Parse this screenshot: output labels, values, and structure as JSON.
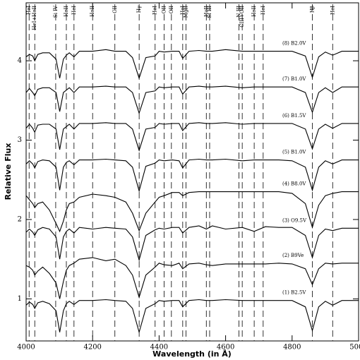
{
  "chart_data": {
    "type": "line",
    "x_label": "Wavelength (in Å)",
    "y_label": "Relative Flux",
    "xlim": [
      4000,
      5000
    ],
    "ylim": [
      0.47,
      4.73
    ],
    "xticks": [
      4000,
      4200,
      4400,
      4600,
      4800,
      5000
    ],
    "yticks": [
      1,
      2,
      3,
      4
    ],
    "lines": [
      {
        "label": "HeI",
        "x": 4009
      },
      {
        "label": "HeI+HeII",
        "x": 4026
      },
      {
        "label": "Si IV",
        "x": 4089
      },
      {
        "label": "HeII",
        "x": 4121
      },
      {
        "label": "HeI",
        "x": 4144
      },
      {
        "label": "HeII",
        "x": 4200
      },
      {
        "label": "CII",
        "x": 4267
      },
      {
        "label": "Hγ",
        "x": 4340
      },
      {
        "label": "HeI",
        "x": 4388
      },
      {
        "label": "OII",
        "x": 4415
      },
      {
        "label": "OII",
        "x": 4437
      },
      {
        "label": "HeI",
        "x": 4471
      },
      {
        "label": "MgII",
        "x": 4481
      },
      {
        "label": "HeII",
        "x": 4542
      },
      {
        "label": "Si III",
        "x": 4552
      },
      {
        "label": "N III",
        "x": 4640
      },
      {
        "label": "CIII+OII",
        "x": 4650
      },
      {
        "label": "HeII",
        "x": 4686
      },
      {
        "label": "HeI",
        "x": 4713
      },
      {
        "label": "Hβ",
        "x": 4861
      },
      {
        "label": "HeI",
        "x": 4922
      }
    ],
    "x": [
      4000,
      4010,
      4020,
      4026,
      4035,
      4050,
      4070,
      4090,
      4101,
      4112,
      4121,
      4130,
      4144,
      4160,
      4200,
      4240,
      4267,
      4300,
      4320,
      4340,
      4360,
      4388,
      4400,
      4415,
      4440,
      4460,
      4471,
      4490,
      4520,
      4542,
      4560,
      4600,
      4650,
      4686,
      4720,
      4760,
      4800,
      4840,
      4861,
      4880,
      4900,
      4922,
      4950,
      5000
    ],
    "series": [
      {
        "name": "(8) B2.0V",
        "color": "#000000",
        "values": [
          4.05,
          4.08,
          4.06,
          4.0,
          4.08,
          4.1,
          4.1,
          4.02,
          3.78,
          4.02,
          4.07,
          4.1,
          4.05,
          4.12,
          4.12,
          4.14,
          4.12,
          4.12,
          4.04,
          3.78,
          4.04,
          4.06,
          4.12,
          4.11,
          4.12,
          4.12,
          4.03,
          4.12,
          4.13,
          4.12,
          4.12,
          4.14,
          4.12,
          4.12,
          4.12,
          4.12,
          4.12,
          4.06,
          3.79,
          4.05,
          4.11,
          4.07,
          4.12,
          4.12
        ]
      },
      {
        "name": "(7) B1.0V",
        "color": "#000000",
        "values": [
          3.6,
          3.65,
          3.6,
          3.56,
          3.64,
          3.66,
          3.66,
          3.6,
          3.36,
          3.6,
          3.63,
          3.66,
          3.6,
          3.67,
          3.67,
          3.68,
          3.67,
          3.67,
          3.6,
          3.34,
          3.6,
          3.62,
          3.67,
          3.66,
          3.67,
          3.67,
          3.58,
          3.67,
          3.68,
          3.67,
          3.67,
          3.68,
          3.66,
          3.67,
          3.67,
          3.67,
          3.67,
          3.6,
          3.35,
          3.6,
          3.66,
          3.6,
          3.67,
          3.67
        ]
      },
      {
        "name": "(6) B1.5V",
        "color": "#000000",
        "values": [
          3.15,
          3.2,
          3.15,
          3.1,
          3.19,
          3.2,
          3.2,
          3.14,
          2.88,
          3.14,
          3.17,
          3.2,
          3.14,
          3.21,
          3.21,
          3.22,
          3.21,
          3.21,
          3.14,
          2.87,
          3.14,
          3.16,
          3.21,
          3.2,
          3.21,
          3.21,
          3.12,
          3.21,
          3.22,
          3.21,
          3.21,
          3.22,
          3.2,
          3.21,
          3.21,
          3.21,
          3.21,
          3.14,
          2.89,
          3.14,
          3.2,
          3.15,
          3.21,
          3.21
        ]
      },
      {
        "name": "(5) B1.0V",
        "color": "#000000",
        "values": [
          2.7,
          2.74,
          2.7,
          2.65,
          2.73,
          2.75,
          2.74,
          2.66,
          2.37,
          2.66,
          2.72,
          2.74,
          2.69,
          2.75,
          2.75,
          2.76,
          2.75,
          2.74,
          2.66,
          2.36,
          2.67,
          2.71,
          2.75,
          2.74,
          2.75,
          2.74,
          2.65,
          2.75,
          2.76,
          2.75,
          2.75,
          2.76,
          2.74,
          2.75,
          2.75,
          2.75,
          2.74,
          2.66,
          2.37,
          2.66,
          2.74,
          2.7,
          2.75,
          2.75
        ]
      },
      {
        "name": "(4) B8.0V",
        "color": "#000000",
        "values": [
          2.3,
          2.25,
          2.2,
          2.15,
          2.2,
          2.22,
          2.12,
          1.95,
          1.85,
          1.98,
          2.12,
          2.2,
          2.22,
          2.28,
          2.32,
          2.3,
          2.28,
          2.22,
          2.08,
          1.86,
          2.08,
          2.22,
          2.28,
          2.3,
          2.34,
          2.34,
          2.3,
          2.34,
          2.35,
          2.35,
          2.35,
          2.35,
          2.35,
          2.35,
          2.35,
          2.35,
          2.33,
          2.2,
          1.9,
          2.18,
          2.3,
          2.33,
          2.35,
          2.35
        ]
      },
      {
        "name": "(3) O9.5V",
        "color": "#000000",
        "values": [
          1.84,
          1.88,
          1.84,
          1.8,
          1.87,
          1.9,
          1.88,
          1.78,
          1.5,
          1.78,
          1.85,
          1.88,
          1.83,
          1.9,
          1.88,
          1.9,
          1.89,
          1.88,
          1.78,
          1.49,
          1.8,
          1.87,
          1.89,
          1.88,
          1.9,
          1.9,
          1.83,
          1.9,
          1.92,
          1.88,
          1.92,
          1.88,
          1.9,
          1.85,
          1.91,
          1.9,
          1.9,
          1.8,
          1.52,
          1.8,
          1.88,
          1.86,
          1.89,
          1.89
        ]
      },
      {
        "name": "(2) B9Ve",
        "color": "#000000",
        "values": [
          1.42,
          1.4,
          1.36,
          1.3,
          1.35,
          1.4,
          1.32,
          1.2,
          1.0,
          1.22,
          1.36,
          1.42,
          1.45,
          1.5,
          1.52,
          1.48,
          1.5,
          1.42,
          1.3,
          1.02,
          1.3,
          1.4,
          1.45,
          1.43,
          1.42,
          1.45,
          1.38,
          1.44,
          1.45,
          1.43,
          1.42,
          1.44,
          1.44,
          1.44,
          1.44,
          1.45,
          1.44,
          1.38,
          1.18,
          1.38,
          1.45,
          1.44,
          1.45,
          1.45
        ]
      },
      {
        "name": "(1) B2.5V",
        "color": "#000000",
        "values": [
          0.92,
          0.96,
          0.93,
          0.88,
          0.95,
          0.97,
          0.94,
          0.85,
          0.58,
          0.85,
          0.94,
          0.97,
          0.93,
          0.98,
          0.98,
          0.99,
          0.98,
          0.97,
          0.88,
          0.58,
          0.88,
          0.94,
          0.98,
          0.97,
          0.98,
          0.98,
          0.9,
          0.98,
          0.99,
          0.98,
          0.98,
          0.99,
          0.98,
          0.98,
          0.98,
          0.98,
          0.98,
          0.9,
          0.6,
          0.9,
          0.97,
          0.92,
          0.98,
          0.98
        ]
      }
    ]
  }
}
